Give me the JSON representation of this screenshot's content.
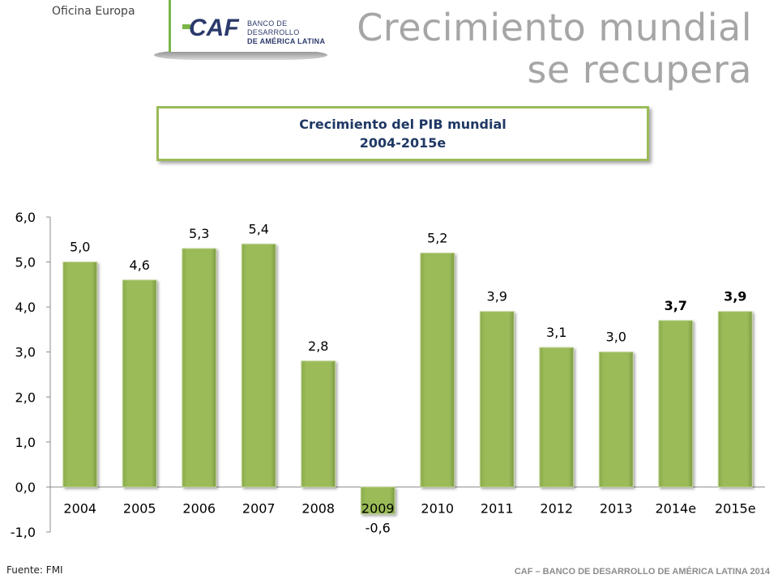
{
  "header": {
    "office": "Oficina Europa",
    "logo_brand": "CAF",
    "logo_line1": "BANCO DE DESARROLLO",
    "logo_line2": "DE AMÉRICA LATINA",
    "title_line1": "Crecimiento mundial",
    "title_line2": "se recupera"
  },
  "chart_title": {
    "line1": "Crecimiento del PIB mundial",
    "line2": "2004-2015e"
  },
  "chart_data": {
    "type": "bar",
    "title": "Crecimiento del PIB mundial 2004-2015e",
    "categories": [
      "2004",
      "2005",
      "2006",
      "2007",
      "2008",
      "2009",
      "2010",
      "2011",
      "2012",
      "2013",
      "2014e",
      "2015e"
    ],
    "values": [
      5.0,
      4.6,
      5.3,
      5.4,
      2.8,
      -0.6,
      5.2,
      3.9,
      3.1,
      3.0,
      3.7,
      3.9
    ],
    "value_labels": [
      "5,0",
      "4,6",
      "5,3",
      "5,4",
      "2,8",
      "-0,6",
      "5,2",
      "3,9",
      "3,1",
      "3,0",
      "3,7",
      "3,9"
    ],
    "bold_labels": [
      false,
      false,
      false,
      false,
      false,
      false,
      false,
      false,
      false,
      false,
      true,
      true
    ],
    "y_ticks": [
      "6,0",
      "5,0",
      "4,0",
      "3,0",
      "2,0",
      "1,0",
      "0,0",
      "-1,0"
    ],
    "y_tick_values": [
      6,
      5,
      4,
      3,
      2,
      1,
      0,
      -1
    ],
    "ylim": [
      -1,
      6
    ],
    "xlabel": "",
    "ylabel": "",
    "grid": false,
    "bar_color": "#9bbb59",
    "bar_highlight": "#c3d69b"
  },
  "source": "Fuente: FMI",
  "footer": "CAF – BANCO DE DESARROLLO DE AMÉRICA LATINA 2014"
}
